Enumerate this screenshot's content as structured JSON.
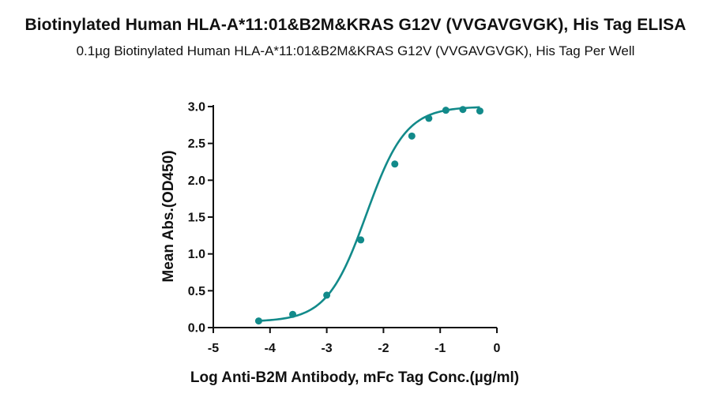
{
  "chart_data": {
    "type": "scatter",
    "title": "Biotinylated Human HLA-A*11:01&B2M&KRAS G12V (VVGAVGVGK), His Tag ELISA",
    "subtitle": "0.1µg Biotinylated Human HLA-A*11:01&B2M&KRAS G12V (VVGAVGVGK), His Tag Per Well",
    "xlabel": "Log Anti-B2M Antibody, mFc Tag Conc.(µg/ml)",
    "ylabel": "Mean Abs.(OD450)",
    "xlim": [
      -5,
      0
    ],
    "ylim": [
      0,
      3.0
    ],
    "xticks": [
      "-5",
      "-4",
      "-3",
      "-2",
      "-1",
      "0"
    ],
    "yticks": [
      "0.0",
      "0.5",
      "1.0",
      "1.5",
      "2.0",
      "2.5",
      "3.0"
    ],
    "series": [
      {
        "points": [
          {
            "x": -4.2,
            "y": 0.09
          },
          {
            "x": -3.6,
            "y": 0.18
          },
          {
            "x": -3.0,
            "y": 0.44
          },
          {
            "x": -2.4,
            "y": 1.19
          },
          {
            "x": -1.8,
            "y": 2.22
          },
          {
            "x": -1.5,
            "y": 2.6
          },
          {
            "x": -1.2,
            "y": 2.84
          },
          {
            "x": -0.9,
            "y": 2.95
          },
          {
            "x": -0.6,
            "y": 2.96
          },
          {
            "x": -0.3,
            "y": 2.94
          }
        ],
        "fit": {
          "model": "4PL",
          "bottom": 0.08,
          "top": 3.0,
          "log_ec50": -2.3,
          "hill_slope": 1.25
        },
        "color": "#128a8a"
      }
    ],
    "grid": false,
    "legend": "none"
  }
}
